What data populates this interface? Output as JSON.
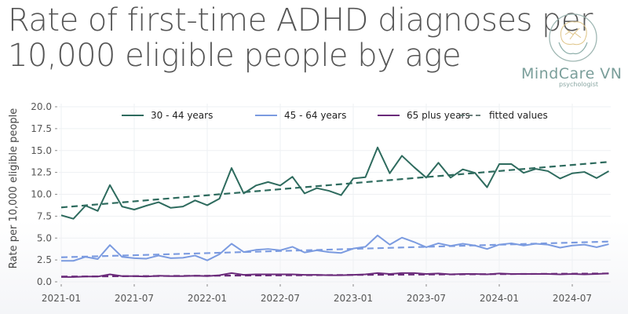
{
  "title_lines": [
    "Rate of first-time ADHD diagnoses per",
    "10,000 eligible people by age"
  ],
  "logo": {
    "name": "MindCare VN",
    "subtitle": "psychologist"
  },
  "chart_data": {
    "type": "line",
    "ylabel": "Rate per 10,000 eligible people",
    "xlabel": "",
    "ylim": [
      0,
      20
    ],
    "yticks": [
      "0.0",
      "2.5",
      "5.0",
      "7.5",
      "10.0",
      "12.5",
      "15.0",
      "17.5",
      "20.0"
    ],
    "xticks": [
      "2021-01",
      "2021-07",
      "2022-01",
      "2022-07",
      "2023-01",
      "2023-07",
      "2024-01",
      "2024-07"
    ],
    "x_start": "2021-01",
    "x_end": "2024-10",
    "grid": true,
    "legend": "top",
    "legend_fitted": "fitted values",
    "series": [
      {
        "name": "30 - 44 years",
        "color": "#2e6b5e",
        "values": [
          7.6,
          7.2,
          8.7,
          8.1,
          11.05,
          8.6,
          8.25,
          8.7,
          9.1,
          8.45,
          8.6,
          9.3,
          8.75,
          9.5,
          13.0,
          10.1,
          11.0,
          11.4,
          11.0,
          12.0,
          10.1,
          10.7,
          10.4,
          9.9,
          11.8,
          11.95,
          15.35,
          12.4,
          14.4,
          13.1,
          11.9,
          13.6,
          11.9,
          12.85,
          12.45,
          10.8,
          13.45,
          13.45,
          12.45,
          12.9,
          12.65,
          11.8,
          12.4,
          12.55,
          11.85,
          12.65
        ],
        "fitted": [
          8.5,
          13.7
        ]
      },
      {
        "name": "45 - 64 years",
        "color": "#7b9be0",
        "values": [
          2.4,
          2.4,
          2.85,
          2.6,
          4.2,
          2.85,
          2.7,
          2.65,
          3.0,
          2.7,
          2.75,
          3.0,
          2.45,
          3.15,
          4.35,
          3.4,
          3.65,
          3.75,
          3.6,
          4.0,
          3.35,
          3.6,
          3.4,
          3.3,
          3.8,
          4.0,
          5.3,
          4.25,
          5.05,
          4.55,
          3.95,
          4.4,
          4.1,
          4.35,
          4.15,
          3.75,
          4.25,
          4.4,
          4.15,
          4.35,
          4.25,
          3.9,
          4.15,
          4.25,
          3.95,
          4.3
        ],
        "fitted": [
          2.8,
          4.6
        ]
      },
      {
        "name": "65 plus years",
        "color": "#6a2a7a",
        "values": [
          0.55,
          0.55,
          0.6,
          0.6,
          0.85,
          0.65,
          0.65,
          0.6,
          0.7,
          0.65,
          0.65,
          0.7,
          0.65,
          0.75,
          1.0,
          0.8,
          0.85,
          0.85,
          0.85,
          0.85,
          0.8,
          0.8,
          0.75,
          0.75,
          0.8,
          0.85,
          1.0,
          0.9,
          1.0,
          1.0,
          0.9,
          0.95,
          0.85,
          0.9,
          0.9,
          0.85,
          0.95,
          0.9,
          0.9,
          0.9,
          0.9,
          0.85,
          0.9,
          0.85,
          0.9,
          0.95
        ],
        "fitted": [
          0.6,
          0.95
        ]
      }
    ],
    "fitted_legend_color": "#6b7f7c"
  }
}
